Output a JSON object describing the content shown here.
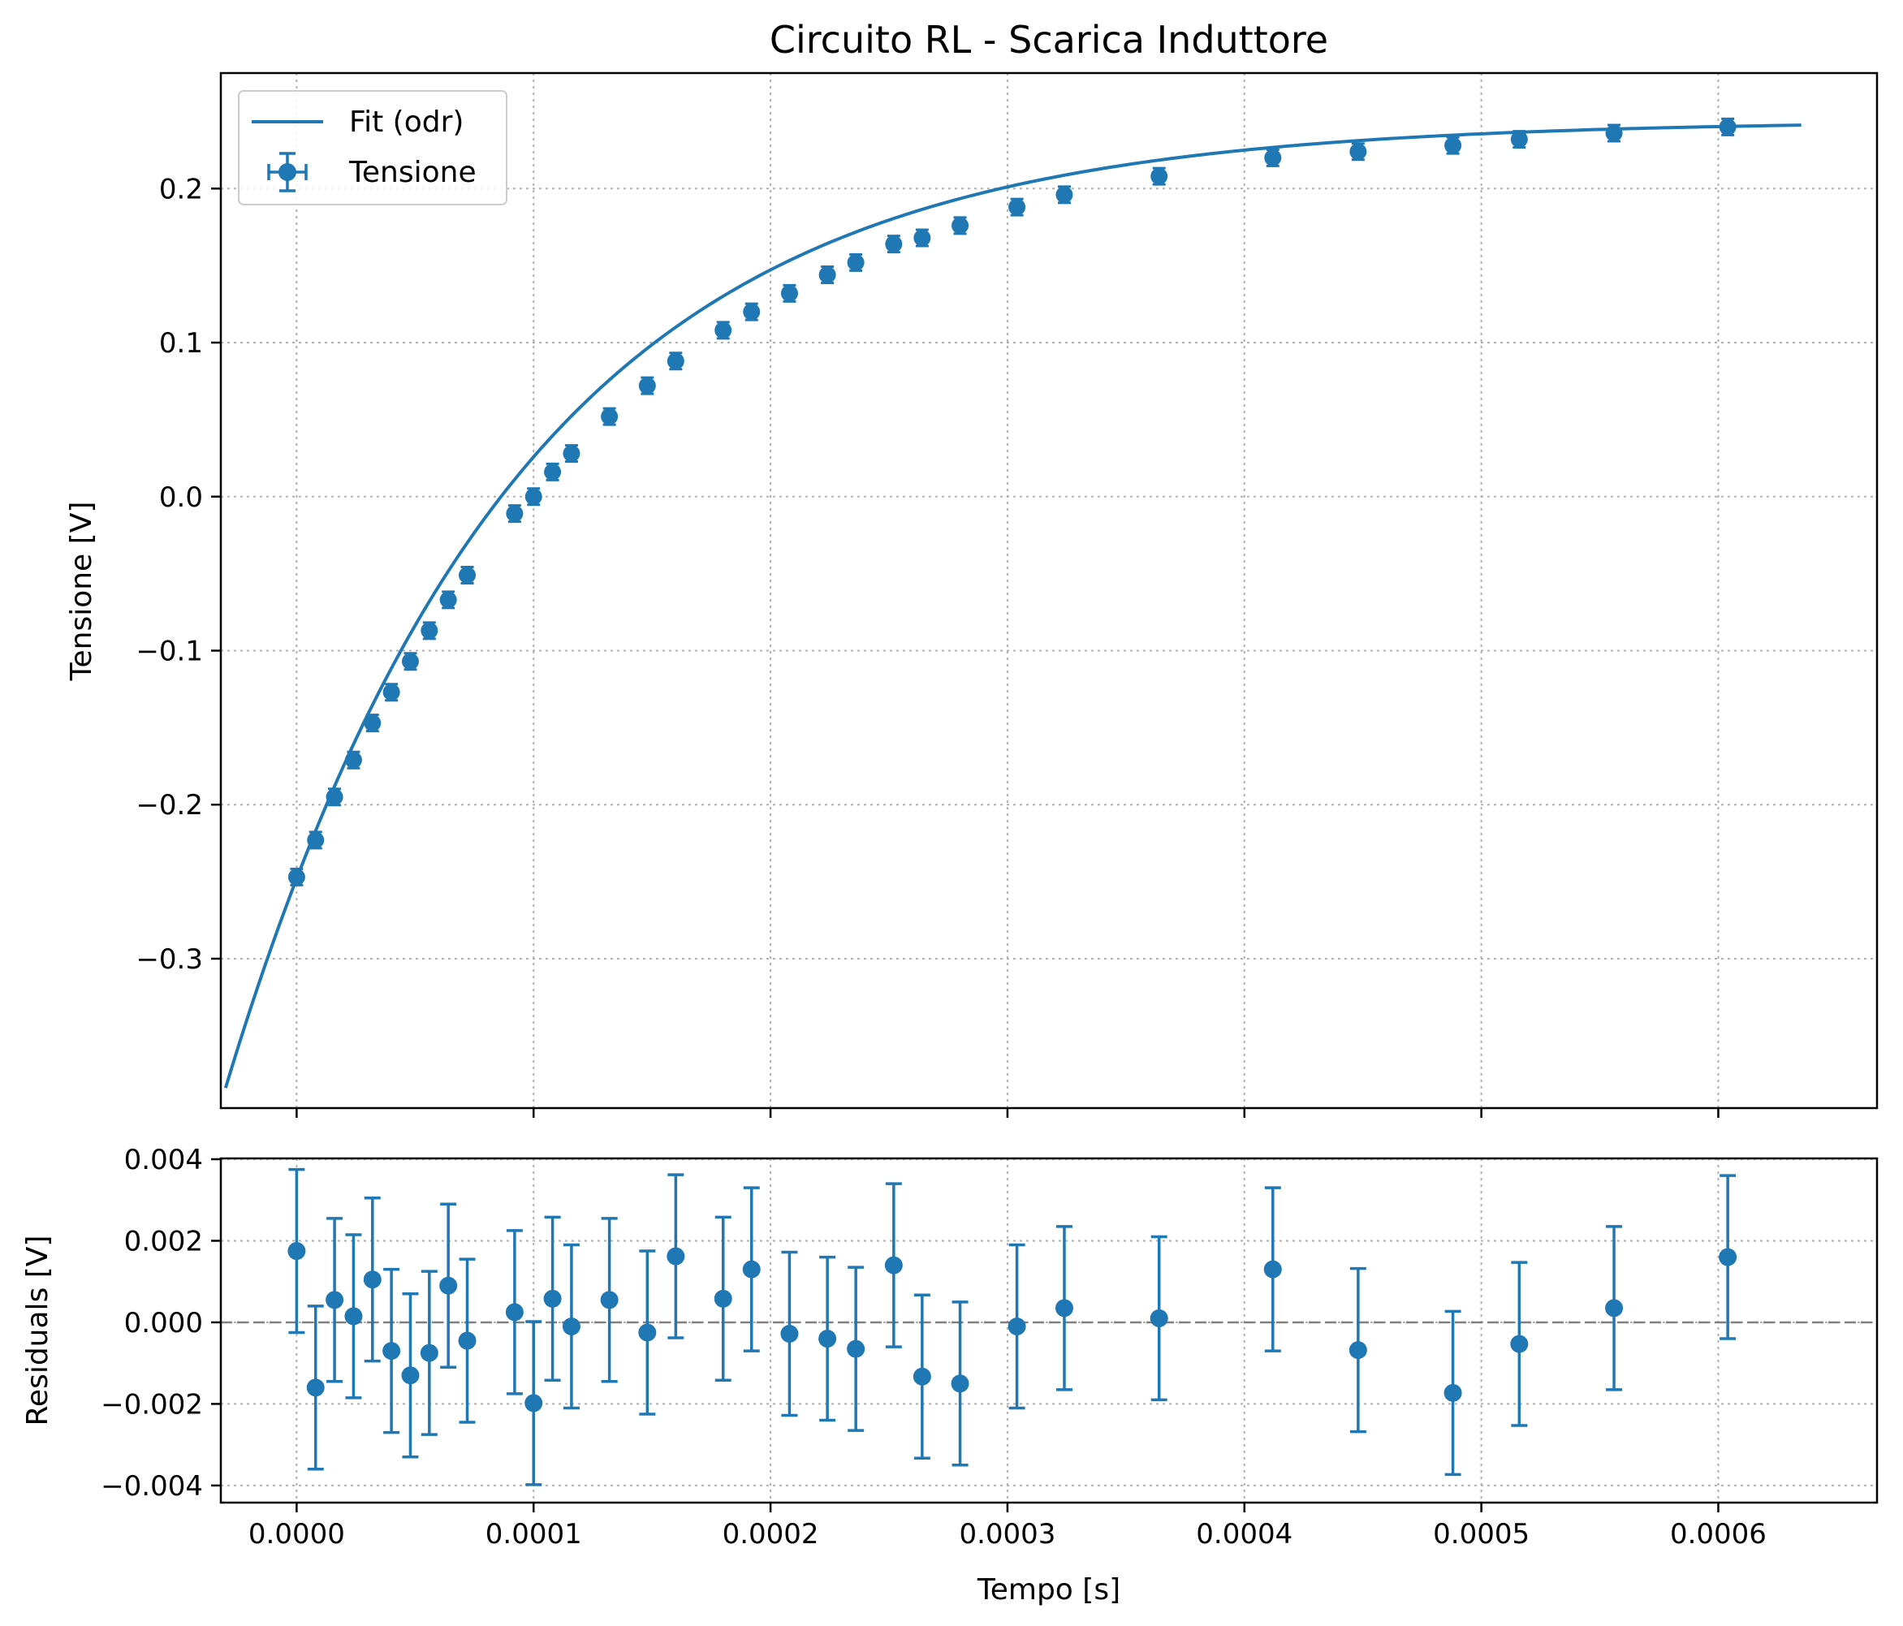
{
  "chart_data": [
    {
      "type": "scatter",
      "title": "Circuito RL - Scarica Induttore",
      "xlabel": "",
      "ylabel": "Tensione [V]",
      "xlim": [
        -3.2e-05,
        0.000667
      ],
      "ylim": [
        -0.397,
        0.275
      ],
      "grid": true,
      "legend_position": "top-left",
      "x_ticks": [
        {
          "value": 0.0,
          "label": "0.0000"
        },
        {
          "value": 0.0001,
          "label": "0.0001"
        },
        {
          "value": 0.0002,
          "label": "0.0002"
        },
        {
          "value": 0.0003,
          "label": "0.0003"
        },
        {
          "value": 0.0004,
          "label": "0.0004"
        },
        {
          "value": 0.0005,
          "label": "0.0005"
        },
        {
          "value": 0.0006,
          "label": "0.0006"
        }
      ],
      "y_ticks": [
        {
          "value": 0.2,
          "label": "0.2"
        },
        {
          "value": 0.1,
          "label": "0.1"
        },
        {
          "value": 0.0,
          "label": "0.0"
        },
        {
          "value": -0.1,
          "label": "−0.1"
        },
        {
          "value": -0.2,
          "label": "−0.2"
        },
        {
          "value": -0.3,
          "label": "−0.3"
        }
      ],
      "series": [
        {
          "name": "Fit (odr)",
          "kind": "line",
          "color": "#1f77b4",
          "model": "exponential rise",
          "x_range": [
            -3e-05,
            0.000635
          ],
          "params": {
            "V_inf": 0.244,
            "V0": -0.248,
            "tau": 0.000123
          }
        },
        {
          "name": "Tensione",
          "kind": "errorbar",
          "color": "#1f77b4",
          "x": [
            0,
            8e-06,
            1.6e-05,
            2.4e-05,
            3.2e-05,
            4e-05,
            4.8e-05,
            5.6e-05,
            6.4e-05,
            7.2e-05,
            9.2e-05,
            0.0001,
            0.000108,
            0.000116,
            0.000132,
            0.000148,
            0.00016,
            0.00018,
            0.000192,
            0.000208,
            0.000224,
            0.000236,
            0.000252,
            0.000264,
            0.00028,
            0.000304,
            0.000324,
            0.000364,
            0.000412,
            0.000448,
            0.000488,
            0.000516,
            0.000556,
            0.000604
          ],
          "y": [
            -0.247,
            -0.223,
            -0.195,
            -0.171,
            -0.147,
            -0.127,
            -0.107,
            -0.087,
            -0.067,
            -0.051,
            -0.011,
            0.0,
            0.016,
            0.028,
            0.052,
            0.072,
            0.088,
            0.108,
            0.12,
            0.132,
            0.144,
            0.152,
            0.164,
            0.168,
            0.176,
            0.188,
            0.196,
            0.208,
            0.22,
            0.224,
            0.228,
            0.232,
            0.236,
            0.24
          ]
        }
      ]
    },
    {
      "type": "scatter",
      "title": "",
      "xlabel": "Tempo [s]",
      "ylabel": "Residuals [V]",
      "xlim": [
        -3.2e-05,
        0.000667
      ],
      "ylim": [
        -0.00442,
        0.00402
      ],
      "grid": true,
      "x_ticks": [
        {
          "value": 0.0,
          "label": "0.0000"
        },
        {
          "value": 0.0001,
          "label": "0.0001"
        },
        {
          "value": 0.0002,
          "label": "0.0002"
        },
        {
          "value": 0.0003,
          "label": "0.0003"
        },
        {
          "value": 0.0004,
          "label": "0.0004"
        },
        {
          "value": 0.0005,
          "label": "0.0005"
        },
        {
          "value": 0.0006,
          "label": "0.0006"
        }
      ],
      "y_ticks": [
        {
          "value": 0.004,
          "label": "0.004"
        },
        {
          "value": 0.002,
          "label": "0.002"
        },
        {
          "value": 0.0,
          "label": "0.000"
        },
        {
          "value": -0.002,
          "label": "−0.002"
        },
        {
          "value": -0.004,
          "label": "−0.004"
        }
      ],
      "reference_line": {
        "y": 0.0,
        "color": "#808080",
        "style": "dashed"
      },
      "series": [
        {
          "name": "Residuals",
          "kind": "errorbar",
          "color": "#1f77b4",
          "yerr": 0.002,
          "x": [
            0,
            8e-06,
            1.6e-05,
            2.4e-05,
            3.2e-05,
            4e-05,
            4.8e-05,
            5.6e-05,
            6.4e-05,
            7.2e-05,
            9.2e-05,
            0.0001,
            0.000108,
            0.000116,
            0.000132,
            0.000148,
            0.00016,
            0.00018,
            0.000192,
            0.000208,
            0.000224,
            0.000236,
            0.000252,
            0.000264,
            0.00028,
            0.000304,
            0.000324,
            0.000364,
            0.000412,
            0.000448,
            0.000488,
            0.000516,
            0.000556,
            0.000604
          ],
          "y": [
            0.00175,
            -0.0016,
            0.00055,
            0.00015,
            0.00105,
            -0.0007,
            -0.0013,
            -0.00075,
            0.0009,
            -0.00045,
            0.00025,
            -0.00198,
            0.00058,
            -0.0001,
            0.00055,
            -0.00025,
            0.00162,
            0.00058,
            0.0013,
            -0.00028,
            -0.0004,
            -0.00065,
            0.0014,
            -0.00133,
            -0.0015,
            -0.0001,
            0.00035,
            0.0001,
            0.0013,
            -0.00068,
            -0.00173,
            -0.00053,
            0.00035,
            0.0016
          ]
        }
      ]
    }
  ]
}
